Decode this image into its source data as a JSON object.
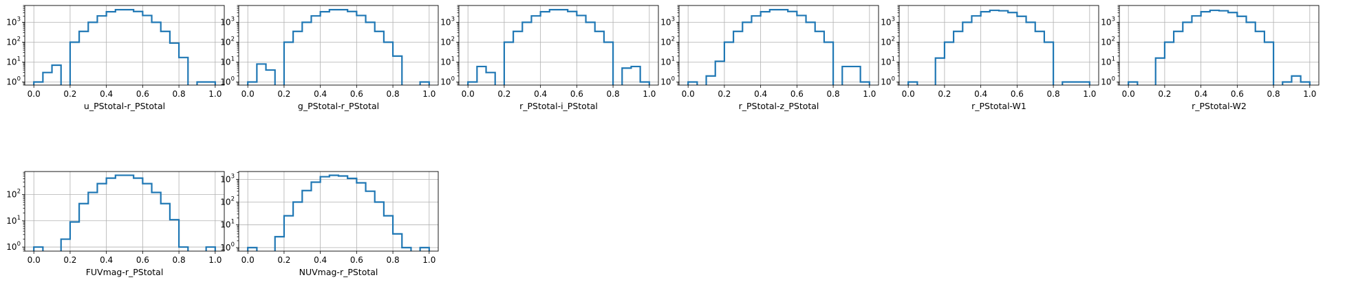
{
  "chart_data": [
    {
      "type": "histogram",
      "xlabel": "u_PStotal-r_PStotal",
      "yscale": "log",
      "xlim": [
        -0.05,
        1.05
      ],
      "ylim": [
        0.7,
        7000
      ],
      "xticks": [
        "0.0",
        "0.2",
        "0.4",
        "0.6",
        "0.8",
        "1.0"
      ],
      "yticks": [
        {
          "base": "10",
          "exp": "0",
          "value": 1
        },
        {
          "base": "10",
          "exp": "1",
          "value": 10
        },
        {
          "base": "10",
          "exp": "2",
          "value": 100
        },
        {
          "base": "10",
          "exp": "3",
          "value": 1000
        }
      ],
      "grid": true,
      "color": "#1f77b4",
      "bin_edges": [
        0,
        0.05,
        0.1,
        0.15,
        0.2,
        0.25,
        0.3,
        0.35,
        0.4,
        0.45,
        0.5,
        0.55,
        0.6,
        0.65,
        0.7,
        0.75,
        0.8,
        0.85,
        0.9,
        0.95,
        1.0
      ],
      "counts": [
        1,
        3,
        7,
        0,
        100,
        350,
        1000,
        2100,
        3400,
        4300,
        4300,
        3500,
        2200,
        1000,
        350,
        90,
        17,
        0,
        1,
        1
      ]
    },
    {
      "type": "histogram",
      "xlabel": "g_PStotal-r_PStotal",
      "yscale": "log",
      "xlim": [
        -0.05,
        1.05
      ],
      "ylim": [
        0.7,
        7000
      ],
      "xticks": [
        "0.0",
        "0.2",
        "0.4",
        "0.6",
        "0.8",
        "1.0"
      ],
      "yticks": [
        {
          "base": "10",
          "exp": "0",
          "value": 1
        },
        {
          "base": "10",
          "exp": "1",
          "value": 10
        },
        {
          "base": "10",
          "exp": "2",
          "value": 100
        },
        {
          "base": "10",
          "exp": "3",
          "value": 1000
        }
      ],
      "grid": true,
      "color": "#1f77b4",
      "bin_edges": [
        0,
        0.05,
        0.1,
        0.15,
        0.2,
        0.25,
        0.3,
        0.35,
        0.4,
        0.45,
        0.5,
        0.55,
        0.6,
        0.65,
        0.7,
        0.75,
        0.8,
        0.85,
        0.9,
        0.95,
        1.0
      ],
      "counts": [
        1,
        8,
        4,
        0,
        100,
        350,
        1000,
        2100,
        3400,
        4300,
        4300,
        3500,
        2200,
        1000,
        350,
        100,
        20,
        0,
        0,
        1
      ]
    },
    {
      "type": "histogram",
      "xlabel": "r_PStotal-i_PStotal",
      "yscale": "log",
      "xlim": [
        -0.05,
        1.05
      ],
      "ylim": [
        0.7,
        7000
      ],
      "xticks": [
        "0.0",
        "0.2",
        "0.4",
        "0.6",
        "0.8",
        "1.0"
      ],
      "yticks": [
        {
          "base": "10",
          "exp": "0",
          "value": 1
        },
        {
          "base": "10",
          "exp": "1",
          "value": 10
        },
        {
          "base": "10",
          "exp": "2",
          "value": 100
        },
        {
          "base": "10",
          "exp": "3",
          "value": 1000
        }
      ],
      "grid": true,
      "color": "#1f77b4",
      "bin_edges": [
        0,
        0.05,
        0.1,
        0.15,
        0.2,
        0.25,
        0.3,
        0.35,
        0.4,
        0.45,
        0.5,
        0.55,
        0.6,
        0.65,
        0.7,
        0.75,
        0.8,
        0.85,
        0.9,
        0.95,
        1.0
      ],
      "counts": [
        1,
        6,
        3,
        0,
        100,
        350,
        1000,
        2100,
        3400,
        4300,
        4300,
        3500,
        2200,
        1000,
        350,
        100,
        0,
        5,
        6,
        1
      ]
    },
    {
      "type": "histogram",
      "xlabel": "r_PStotal-z_PStotal",
      "yscale": "log",
      "xlim": [
        -0.05,
        1.05
      ],
      "ylim": [
        0.7,
        7000
      ],
      "xticks": [
        "0.0",
        "0.2",
        "0.4",
        "0.6",
        "0.8",
        "1.0"
      ],
      "yticks": [
        {
          "base": "10",
          "exp": "0",
          "value": 1
        },
        {
          "base": "10",
          "exp": "1",
          "value": 10
        },
        {
          "base": "10",
          "exp": "2",
          "value": 100
        },
        {
          "base": "10",
          "exp": "3",
          "value": 1000
        }
      ],
      "grid": true,
      "color": "#1f77b4",
      "bin_edges": [
        0,
        0.05,
        0.1,
        0.15,
        0.2,
        0.25,
        0.3,
        0.35,
        0.4,
        0.45,
        0.5,
        0.55,
        0.6,
        0.65,
        0.7,
        0.75,
        0.8,
        0.85,
        0.9,
        0.95,
        1.0
      ],
      "counts": [
        1,
        0,
        2,
        11,
        100,
        350,
        1000,
        2100,
        3400,
        4300,
        4300,
        3500,
        2200,
        1000,
        350,
        100,
        0,
        6,
        6,
        1
      ]
    },
    {
      "type": "histogram",
      "xlabel": "r_PStotal-W1",
      "yscale": "log",
      "xlim": [
        -0.05,
        1.05
      ],
      "ylim": [
        0.7,
        7000
      ],
      "xticks": [
        "0.0",
        "0.2",
        "0.4",
        "0.6",
        "0.8",
        "1.0"
      ],
      "yticks": [
        {
          "base": "10",
          "exp": "0",
          "value": 1
        },
        {
          "base": "10",
          "exp": "1",
          "value": 10
        },
        {
          "base": "10",
          "exp": "2",
          "value": 100
        },
        {
          "base": "10",
          "exp": "3",
          "value": 1000
        }
      ],
      "grid": true,
      "color": "#1f77b4",
      "bin_edges": [
        0,
        0.05,
        0.1,
        0.15,
        0.2,
        0.25,
        0.3,
        0.35,
        0.4,
        0.45,
        0.5,
        0.55,
        0.6,
        0.65,
        0.7,
        0.75,
        0.8,
        0.85,
        0.9,
        0.95,
        1.0
      ],
      "counts": [
        1,
        0,
        0,
        16,
        100,
        350,
        1000,
        2100,
        3400,
        4000,
        3800,
        3100,
        2000,
        1000,
        350,
        100,
        0,
        1,
        1,
        1
      ]
    },
    {
      "type": "histogram",
      "xlabel": "r_PStotal-W2",
      "yscale": "log",
      "xlim": [
        -0.05,
        1.05
      ],
      "ylim": [
        0.7,
        7000
      ],
      "xticks": [
        "0.0",
        "0.2",
        "0.4",
        "0.6",
        "0.8",
        "1.0"
      ],
      "yticks": [
        {
          "base": "10",
          "exp": "0",
          "value": 1
        },
        {
          "base": "10",
          "exp": "1",
          "value": 10
        },
        {
          "base": "10",
          "exp": "2",
          "value": 100
        },
        {
          "base": "10",
          "exp": "3",
          "value": 1000
        }
      ],
      "grid": true,
      "color": "#1f77b4",
      "bin_edges": [
        0,
        0.05,
        0.1,
        0.15,
        0.2,
        0.25,
        0.3,
        0.35,
        0.4,
        0.45,
        0.5,
        0.55,
        0.6,
        0.65,
        0.7,
        0.75,
        0.8,
        0.85,
        0.9,
        0.95,
        1.0
      ],
      "counts": [
        1,
        0,
        0,
        16,
        100,
        350,
        1000,
        2100,
        3400,
        4000,
        3800,
        3100,
        2000,
        1000,
        350,
        100,
        0,
        1,
        2,
        1
      ]
    },
    {
      "type": "histogram",
      "xlabel": "FUVmag-r_PStotal",
      "yscale": "log",
      "xlim": [
        -0.05,
        1.05
      ],
      "ylim": [
        0.7,
        750
      ],
      "xticks": [
        "0.0",
        "0.2",
        "0.4",
        "0.6",
        "0.8",
        "1.0"
      ],
      "yticks": [
        {
          "base": "10",
          "exp": "0",
          "value": 1
        },
        {
          "base": "10",
          "exp": "1",
          "value": 10
        },
        {
          "base": "10",
          "exp": "2",
          "value": 100
        }
      ],
      "grid": true,
      "color": "#1f77b4",
      "bin_edges": [
        0,
        0.05,
        0.1,
        0.15,
        0.2,
        0.25,
        0.3,
        0.35,
        0.4,
        0.45,
        0.5,
        0.55,
        0.6,
        0.65,
        0.7,
        0.75,
        0.8,
        0.85,
        0.9,
        0.95,
        1.0
      ],
      "counts": [
        1,
        0,
        0,
        2,
        9,
        45,
        120,
        260,
        420,
        540,
        540,
        420,
        260,
        120,
        45,
        11,
        1,
        0,
        0,
        1
      ]
    },
    {
      "type": "histogram",
      "xlabel": "NUVmag-r_PStotal",
      "yscale": "log",
      "xlim": [
        -0.05,
        1.05
      ],
      "ylim": [
        0.7,
        2200
      ],
      "xticks": [
        "0.0",
        "0.2",
        "0.4",
        "0.6",
        "0.8",
        "1.0"
      ],
      "yticks": [
        {
          "base": "10",
          "exp": "0",
          "value": 1
        },
        {
          "base": "10",
          "exp": "1",
          "value": 10
        },
        {
          "base": "10",
          "exp": "2",
          "value": 100
        },
        {
          "base": "10",
          "exp": "3",
          "value": 1000
        }
      ],
      "grid": true,
      "color": "#1f77b4",
      "bin_edges": [
        0,
        0.05,
        0.1,
        0.15,
        0.2,
        0.25,
        0.3,
        0.35,
        0.4,
        0.45,
        0.5,
        0.55,
        0.6,
        0.65,
        0.7,
        0.75,
        0.8,
        0.85,
        0.9,
        0.95,
        1.0
      ],
      "counts": [
        1,
        0,
        0,
        3,
        25,
        100,
        320,
        750,
        1300,
        1500,
        1400,
        1100,
        700,
        300,
        100,
        25,
        4,
        1,
        0,
        1
      ]
    }
  ]
}
